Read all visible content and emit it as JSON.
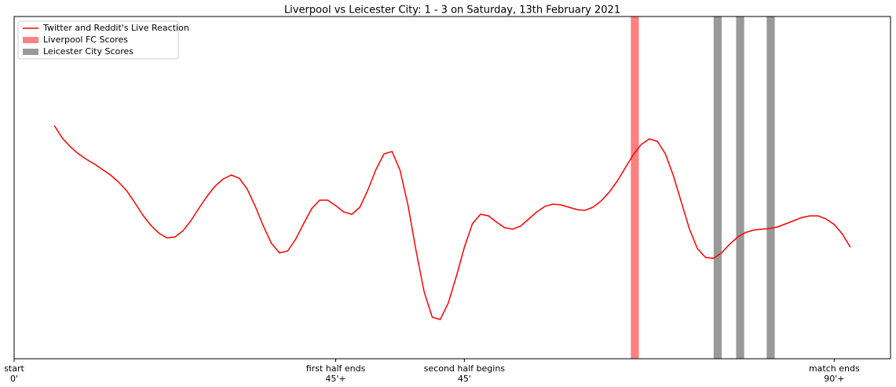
{
  "chart_data": {
    "type": "line",
    "title": "Liverpool vs Leicester City: 1 - 3 on Saturday, 13th February 2021",
    "x": [
      5,
      6,
      7,
      8,
      9,
      10,
      11,
      12,
      13,
      14,
      15,
      16,
      17,
      18,
      19,
      20,
      21,
      22,
      23,
      24,
      25,
      26,
      27,
      28,
      29,
      30,
      31,
      32,
      33,
      34,
      35,
      36,
      37,
      38,
      39,
      40,
      41,
      42,
      43,
      44,
      45,
      46,
      47,
      48,
      49,
      50,
      51,
      52,
      53,
      54,
      55,
      56,
      57,
      58,
      59,
      60,
      61,
      62,
      63,
      64,
      65,
      66,
      67,
      68,
      69,
      70,
      71,
      72,
      73,
      74,
      75,
      76,
      77,
      78,
      79,
      80,
      81,
      82,
      83,
      84,
      85,
      86,
      87,
      88,
      89,
      90,
      91,
      92,
      93,
      94,
      95,
      96,
      97,
      98,
      99,
      100,
      101,
      102,
      103,
      104
    ],
    "series": [
      {
        "name": "Twitter and Reddit's Live Reaction",
        "color": "#ff0000",
        "values": [
          297,
          281,
          270,
          261,
          254,
          248,
          241,
          234,
          225,
          214,
          199,
          183,
          170,
          160,
          154,
          155,
          163,
          176,
          192,
          207,
          220,
          229,
          234,
          230,
          216,
          194,
          169,
          147,
          135,
          137,
          152,
          172,
          191,
          202,
          202,
          195,
          187,
          184,
          193,
          215,
          241,
          261,
          264,
          240,
          195,
          137,
          85,
          53,
          50,
          71,
          105,
          142,
          172,
          184,
          182,
          174,
          167,
          165,
          169,
          178,
          187,
          194,
          197,
          196,
          193,
          190,
          189,
          193,
          201,
          212,
          226,
          243,
          260,
          273,
          280,
          277,
          261,
          233,
          199,
          165,
          140,
          129,
          128,
          135,
          146,
          155,
          161,
          164,
          165,
          166,
          168,
          172,
          176,
          180,
          182,
          182,
          178,
          171,
          159,
          142
        ]
      }
    ],
    "spans": [
      {
        "name": "Liverpool FC Scores",
        "color": "#ff8080",
        "ranges": [
          [
            76.7,
            77.7
          ]
        ]
      },
      {
        "name": "Leicester City Scores",
        "color": "#999999",
        "ranges": [
          [
            87.0,
            88.0
          ],
          [
            89.8,
            90.8
          ],
          [
            93.6,
            94.6
          ]
        ]
      }
    ],
    "xlim": [
      0,
      109
    ],
    "ylim": [
      0,
      436
    ],
    "xticks": [
      {
        "value": 0,
        "label": "start\n0'"
      },
      {
        "value": 40,
        "label": "first half ends\n45'+"
      },
      {
        "value": 56,
        "label": "second half begins\n45'"
      },
      {
        "value": 102,
        "label": "match ends\n90'+"
      }
    ],
    "legend": "upper left"
  }
}
